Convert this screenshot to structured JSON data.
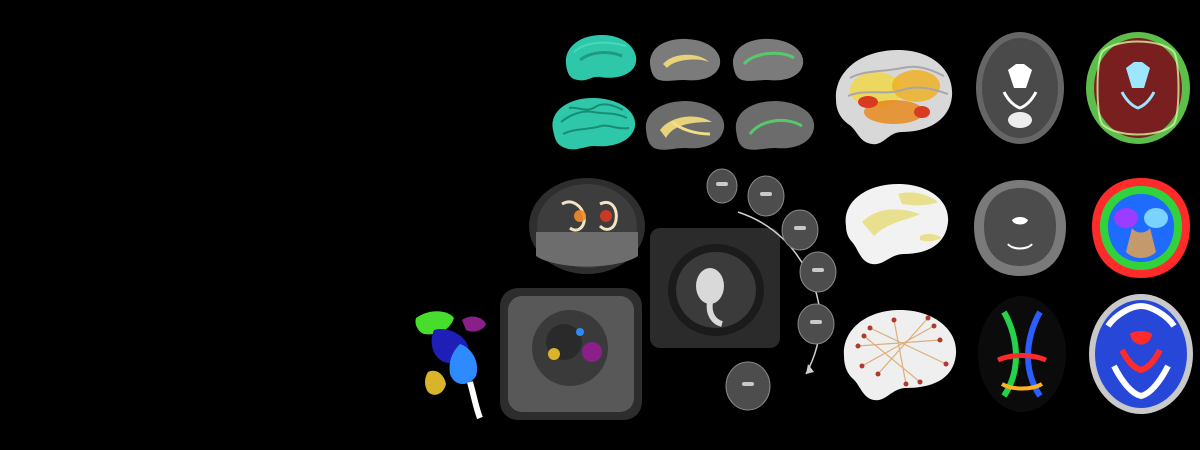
{
  "scene": {
    "background": "#000000",
    "colors": {
      "teal": "#2fc7a9",
      "yellow": "#e8d27a",
      "green": "#57c96b",
      "orange": "#e88a1f",
      "red": "#d83a22",
      "blue": "#2747d8",
      "gray": "#8a8a8a",
      "dark_gray": "#2e2e2e"
    }
  },
  "panels": [
    "teal-surface-medial",
    "gray-brain-yellow-tract",
    "gray-brain-green-tract",
    "teal-surface-lateral",
    "gray-brain-yellow-tract-2",
    "gray-brain-green-tract-2",
    "heatmap-cortex",
    "mri-axial-t2",
    "cortical-segmentation-axial",
    "glass-brain-3d",
    "yellow-inflated-surface",
    "mri-coronal",
    "tissue-segmentation-coronal",
    "fetal-mri-uterus",
    "fetal-brain-sequence",
    "structural-connectome",
    "diffusion-color-map",
    "blue-red-parametric-map",
    "subcortical-3d-structures",
    "ultrasound-like-slice"
  ]
}
